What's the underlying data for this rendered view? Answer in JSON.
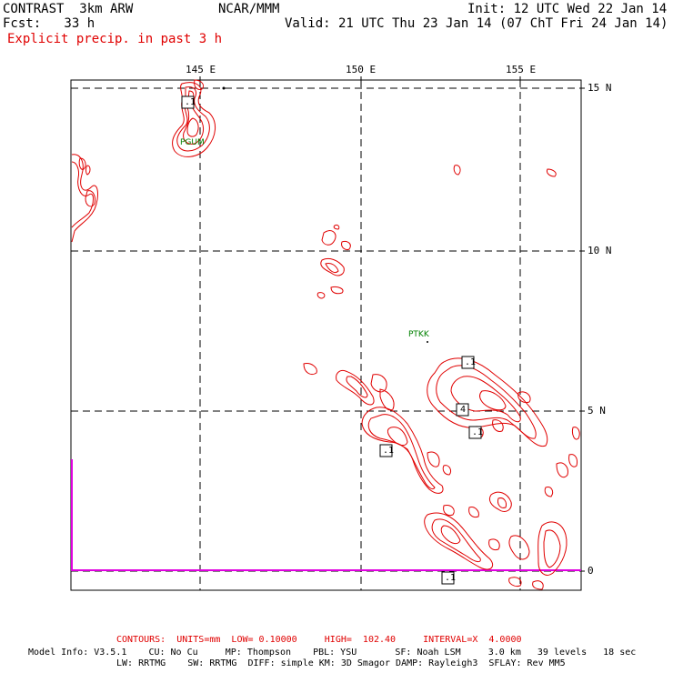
{
  "header": {
    "model": "CONTRAST  3km ARW",
    "center": "NCAR/MMM",
    "init": "Init: 12 UTC Wed 22 Jan 14",
    "fcst": "Fcst:   33 h",
    "valid": "Valid: 21 UTC Thu 23 Jan 14 (07 ChT Fri 24 Jan 14)",
    "field": "Explicit precip. in past 3 h"
  },
  "axes": {
    "lon_labels": [
      "145 E",
      "150 E",
      "155 E"
    ],
    "lat_labels": [
      "15 N",
      "10 N",
      "5 N",
      "0"
    ]
  },
  "stations": {
    "ptkk": "PTKK",
    "guam": "PGUM"
  },
  "contour_labels": [
    ".1",
    ".1",
    ".1",
    "4",
    ".1",
    ".1"
  ],
  "footer": {
    "contours": "CONTOURS:  UNITS=mm  LOW= 0.10000     HIGH=  102.40     INTERVAL=X  4.0000",
    "info1": "Model Info: V3.5.1    CU: No Cu     MP: Thompson    PBL: YSU       SF: Noah LSM     3.0 km   39 levels   18 sec",
    "info2": "LW: RRTMG    SW: RRTMG  DIFF: simple KM: 3D Smagor DAMP: Rayleigh3  SFLAY: Rev MM5"
  },
  "colors": {
    "contour": "#e00000",
    "grid": "#000000",
    "station": "#008000",
    "boundary": "#e000e0"
  }
}
